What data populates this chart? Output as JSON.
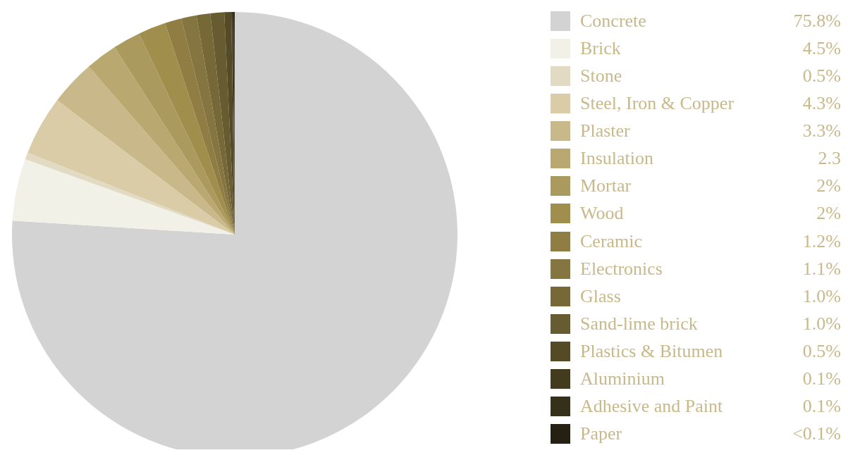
{
  "chart_data": {
    "type": "pie",
    "categories": [
      "Concrete",
      "Brick",
      "Stone",
      "Steel, Iron & Copper",
      "Plaster",
      "Insulation",
      "Mortar",
      "Wood",
      "Ceramic",
      "Electronics",
      "Glass",
      "Sand-lime brick",
      "Plastics & Bitumen",
      "Aluminium",
      "Adhesive and Paint",
      "Paper"
    ],
    "values": [
      75.8,
      4.5,
      0.5,
      4.3,
      3.3,
      2.3,
      2,
      2,
      1.2,
      1.1,
      1.0,
      1.0,
      0.5,
      0.1,
      0.1,
      0.05
    ],
    "value_labels": [
      "75.8%",
      "4.5%",
      "0.5%",
      "4.3%",
      "3.3%",
      "2.3",
      "2%",
      "2%",
      "1.2%",
      "1.1%",
      "1.0%",
      "1.0%",
      "0.5%",
      "0.1%",
      "0.1%",
      "<0.1%"
    ],
    "colors": [
      "#d3d3d3",
      "#f2f1e8",
      "#e3dac4",
      "#d9cca7",
      "#c9b98a",
      "#b9a86f",
      "#ab9a5e",
      "#a08e4c",
      "#8f7d44",
      "#857540",
      "#776838",
      "#675b31",
      "#554a26",
      "#433b1e",
      "#353019",
      "#242113"
    ],
    "legend": "right"
  }
}
